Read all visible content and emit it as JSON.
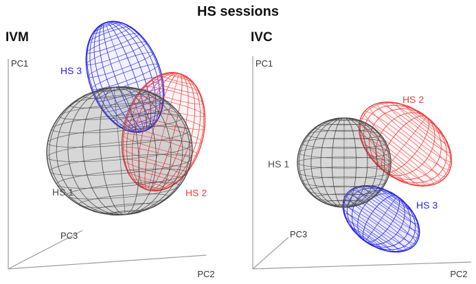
{
  "figure": {
    "title": "HS sessions",
    "panels": [
      {
        "id": "ivm",
        "label": "IVM",
        "axes": {
          "x": "PC2",
          "y": "PC1",
          "z": "PC3"
        },
        "ellipsoids": [
          {
            "label": "HS 3",
            "color": "#2323e6"
          },
          {
            "label": "HS 2",
            "color": "#f03a3a"
          },
          {
            "label": "HS 1",
            "color": "#4a4a4a"
          }
        ]
      },
      {
        "id": "ivc",
        "label": "IVC",
        "axes": {
          "x": "PC2",
          "y": "PC1",
          "z": "PC3"
        },
        "ellipsoids": [
          {
            "label": "HS 2",
            "color": "#f03a3a"
          },
          {
            "label": "HS 1",
            "color": "#4a4a4a"
          },
          {
            "label": "HS 3",
            "color": "#2323e6"
          }
        ]
      }
    ]
  }
}
